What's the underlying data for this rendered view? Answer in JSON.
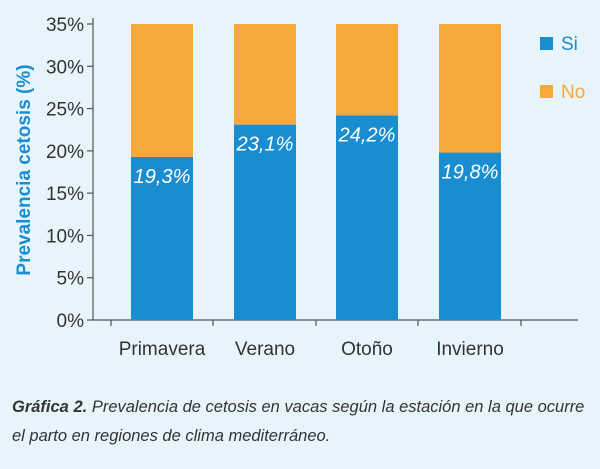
{
  "chart_data": {
    "type": "bar",
    "stacked": true,
    "categories": [
      "Primavera",
      "Verano",
      "Otoño",
      "Invierno"
    ],
    "series": [
      {
        "name": "Si",
        "values": [
          19.3,
          23.1,
          24.2,
          19.8
        ],
        "color": "#1a8dd0",
        "labels": [
          "19,3%",
          "23,1%",
          "24,2%",
          "19,8%"
        ]
      },
      {
        "name": "No",
        "values": [
          15.7,
          11.9,
          10.8,
          15.2
        ],
        "color": "#f5a83c"
      }
    ],
    "ylabel": "Prevalencia cetosis (%)",
    "ylim": [
      0,
      35
    ],
    "yticks": [
      "0%",
      "5%",
      "10%",
      "15%",
      "20%",
      "25%",
      "30%",
      "35%"
    ],
    "grid": false,
    "legend": "top-right"
  },
  "caption": {
    "label": "Gráfica 2.",
    "text": "Prevalencia de cetosis en vacas según la estación en la que ocurre el parto en regiones de clima mediterráneo."
  }
}
